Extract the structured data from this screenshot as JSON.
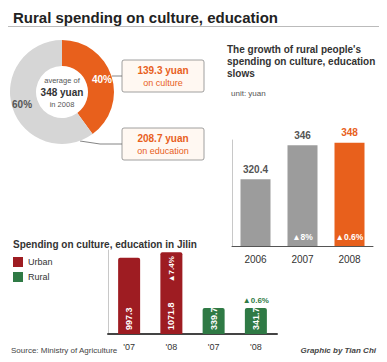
{
  "title": "Rural spending on culture, education",
  "source": "Source: Ministry of Agriculture",
  "credit": "Graphic by Tian Chi",
  "chart_data": [
    {
      "type": "pie",
      "subtitle": "average of 348 yuan in 2008",
      "values": [
        40,
        60
      ],
      "value_labels": [
        "40%",
        "60%"
      ],
      "colors": [
        "#e8601c",
        "#d6d6d6"
      ],
      "data_labels": true,
      "annotations": [
        "139.3 yuan on culture",
        "208.7 yuan on education"
      ]
    },
    {
      "type": "bar",
      "title": "The growth of rural people's spending on culture, education slows",
      "subtitle": "unit: yuan",
      "categories": [
        "2006",
        "2007",
        "2008"
      ],
      "values": [
        320.4,
        346,
        348
      ],
      "colors": [
        "#9c9c9c",
        "#9c9c9c",
        "#e8601c"
      ],
      "ylim": [
        270,
        350
      ],
      "data_labels": true,
      "tick_labels": "x",
      "growth": [
        null,
        8,
        0.6
      ],
      "growth_labels": [
        null,
        "▲8%",
        "▲0.6%"
      ]
    },
    {
      "type": "bar",
      "title": "Spending on culture, education in Jilin",
      "categories": [
        "'07",
        "'08",
        "'07",
        "'08"
      ],
      "series": [
        {
          "name": "Urban",
          "color": "#9e1c22",
          "values": [
            997.3,
            1071.8,
            null,
            null
          ],
          "growth": [
            null,
            7.4,
            null,
            null
          ],
          "growth_labels": [
            null,
            "▲7.4%",
            null,
            null
          ]
        },
        {
          "name": "Rural",
          "color": "#2f7a45",
          "values": [
            null,
            null,
            339.7,
            341.7
          ],
          "growth": [
            null,
            null,
            null,
            0.6
          ],
          "growth_labels": [
            null,
            null,
            null,
            "▲0.6%"
          ]
        }
      ],
      "ylim": [
        0,
        1100
      ],
      "data_labels": true,
      "tick_labels": "x",
      "legend": "left"
    }
  ]
}
